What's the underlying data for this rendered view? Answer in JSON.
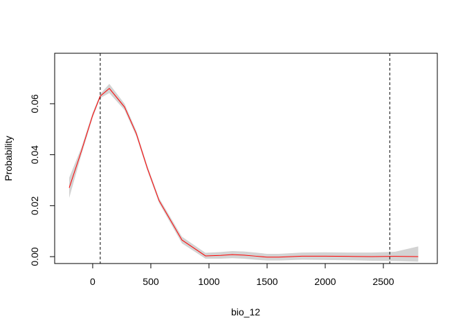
{
  "chart_data": {
    "type": "line",
    "title": "",
    "xlabel": "bio_12",
    "ylabel": "Probability",
    "xlim": [
      -327,
      2964
    ],
    "ylim": [
      -0.0027,
      0.0798
    ],
    "grid": false,
    "x_ticks": [
      0,
      500,
      1000,
      1500,
      2000,
      2500
    ],
    "x_tick_labels": [
      "0",
      "500",
      "1000",
      "1500",
      "2000",
      "2500"
    ],
    "y_ticks": [
      0,
      0.02,
      0.04,
      0.06
    ],
    "y_tick_labels": [
      "0.00",
      "0.02",
      "0.04",
      "0.06"
    ],
    "series": [
      {
        "color": "#ff0000",
        "band_color": "#d3d3d3",
        "x": [
          -202,
          -100,
          0,
          65,
          143,
          274,
          375,
          470,
          571,
          768,
          970,
          1100,
          1200,
          1300,
          1400,
          1500,
          1600,
          1800,
          2000,
          2200,
          2400,
          2600,
          2800
        ],
        "y": [
          0.027,
          0.041,
          0.0555,
          0.063,
          0.066,
          0.0587,
          0.0483,
          0.0347,
          0.022,
          0.0065,
          0.0003,
          0.0005,
          0.0008,
          0.0006,
          0.0002,
          -0.0002,
          -0.0002,
          0.0002,
          0.0002,
          0.0001,
          0,
          0.0001,
          0
        ],
        "lower": [
          0.023,
          0.0395,
          0.0545,
          0.0622,
          0.0642,
          0.0575,
          0.0472,
          0.0337,
          0.021,
          0.0052,
          -0.0008,
          -0.0008,
          -0.0006,
          -0.0008,
          -0.0012,
          -0.0015,
          -0.0015,
          -0.0012,
          -0.0013,
          -0.0014,
          -0.0016,
          -0.0017,
          -0.002
        ],
        "upper": [
          0.031,
          0.0425,
          0.0565,
          0.0638,
          0.0678,
          0.06,
          0.0494,
          0.0357,
          0.023,
          0.0078,
          0.0015,
          0.0018,
          0.0022,
          0.002,
          0.0016,
          0.0011,
          0.0011,
          0.0016,
          0.0017,
          0.0016,
          0.0016,
          0.0019,
          0.004
        ]
      }
    ],
    "vlines": [
      65,
      2555
    ]
  }
}
